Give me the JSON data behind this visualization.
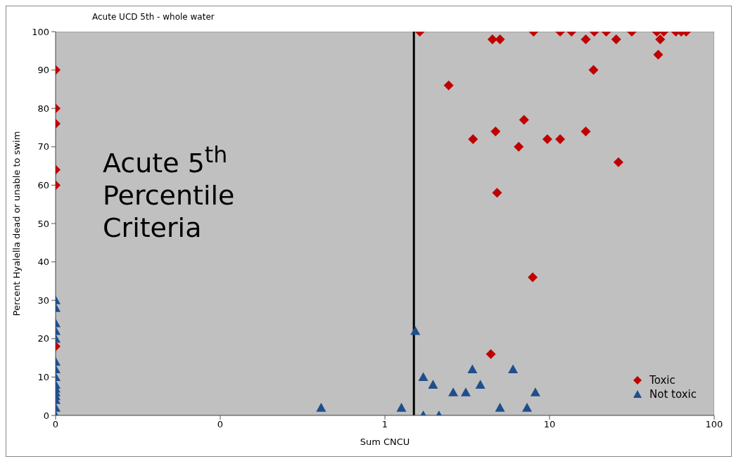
{
  "chart_data": {
    "type": "scatter",
    "title": "Acute UCD 5th - whole water",
    "xlabel": "Sum CNCU",
    "ylabel": "Percent Hyalella dead or unable to swim",
    "annotations": [
      "Acute 5$^{th}$ Percentile Criteria"
    ],
    "log": "x",
    "xlim": [
      0.01,
      100
    ],
    "xticks": [
      {
        "value": 0.01,
        "label": "0"
      },
      {
        "value": 0.1,
        "label": "0"
      },
      1,
      10,
      100
    ],
    "ylim": [
      0,
      100
    ],
    "yticks": [
      0,
      10,
      20,
      30,
      40,
      50,
      60,
      70,
      80,
      90,
      100
    ],
    "grid": false,
    "legend": "bottom right",
    "ref_lines": [
      {
        "axis": "x",
        "value": 1.5,
        "color": "#000000"
      }
    ],
    "series": [
      {
        "name": "Toxic",
        "color": "#c00000",
        "marker": "diamond",
        "x": [
          0.01,
          0.01,
          0.01,
          0.01,
          0.01,
          0.01,
          1.63,
          4.5,
          5.0,
          8.0,
          11.6,
          13.6,
          16.6,
          18.7,
          22.1,
          25.4,
          31.6,
          44.8,
          49.4,
          47,
          45.7,
          58.5,
          63.1,
          67.6,
          18.5,
          2.44,
          3.43,
          4.7,
          7.0,
          6.5,
          9.7,
          11.6,
          16.6,
          26.2,
          4.8,
          7.9,
          4.4
        ],
        "values": [
          90,
          80,
          76,
          64,
          60,
          18,
          100,
          98,
          98,
          100,
          100,
          100,
          98,
          100,
          100,
          98,
          100,
          100,
          100,
          98,
          94,
          100,
          100,
          100,
          90,
          86,
          72,
          74,
          77,
          70,
          72,
          72,
          74,
          66,
          58,
          36,
          16
        ]
      },
      {
        "name": "Not toxic",
        "color": "#1f4e8c",
        "marker": "triangle",
        "x": [
          0.01,
          0.01,
          0.01,
          0.01,
          0.01,
          0.01,
          0.01,
          0.01,
          0.01,
          0.01,
          0.01,
          0.01,
          0.01,
          0.01,
          0.01,
          0.41,
          1.53,
          1.26,
          1.71,
          2.13,
          1.71,
          1.96,
          2.6,
          3.1,
          3.4,
          3.8,
          5.0,
          6.0,
          7.3,
          8.2
        ],
        "values": [
          30,
          28,
          24,
          22,
          20,
          14,
          12,
          10,
          8,
          7,
          6,
          5,
          4,
          2,
          0,
          2,
          22,
          2,
          0,
          0,
          10,
          8,
          6,
          6,
          12,
          8,
          2,
          12,
          2,
          6
        ]
      }
    ]
  }
}
